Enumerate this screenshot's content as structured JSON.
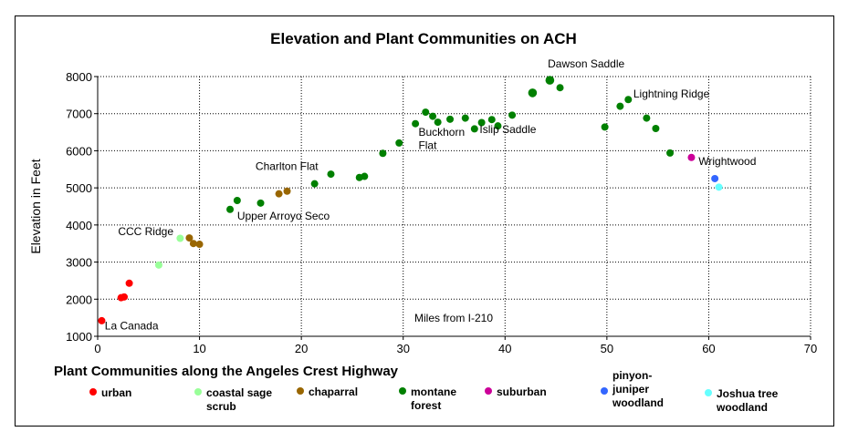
{
  "chart_data": {
    "type": "scatter",
    "title": "Elevation and Plant Communities on ACH",
    "xlabel": "Miles from I-210",
    "ylabel": "Elevation in Feet",
    "xlim": [
      0,
      70
    ],
    "ylim": [
      1000,
      8000
    ],
    "xticks": [
      "0",
      "10",
      "20",
      "30",
      "40",
      "50",
      "60",
      "70"
    ],
    "yticks": [
      "1000",
      "2000",
      "3000",
      "4000",
      "5000",
      "6000",
      "7000",
      "8000"
    ],
    "grid": true,
    "legend_title": "Plant Communities along the Angeles Crest Highway",
    "series": [
      {
        "name": "urban",
        "color": "#ff0000",
        "points": [
          [
            0.4,
            1420
          ],
          [
            2.3,
            2040
          ],
          [
            2.6,
            2060
          ],
          [
            3.1,
            2430
          ]
        ]
      },
      {
        "name": "coastal sage scrub",
        "color": "#99ff99",
        "points": [
          [
            6.0,
            2920
          ],
          [
            8.1,
            3640
          ]
        ]
      },
      {
        "name": "chaparral",
        "color": "#996600",
        "points": [
          [
            9.0,
            3650
          ],
          [
            9.4,
            3500
          ],
          [
            10.0,
            3480
          ],
          [
            17.8,
            4840
          ],
          [
            18.6,
            4910
          ]
        ]
      },
      {
        "name": "montane forest",
        "color": "#008000",
        "points": [
          [
            13.0,
            4420
          ],
          [
            13.7,
            4660
          ],
          [
            16.0,
            4590
          ],
          [
            21.3,
            5110
          ],
          [
            22.9,
            5370
          ],
          [
            25.7,
            5280
          ],
          [
            26.2,
            5310
          ],
          [
            28.0,
            5930
          ],
          [
            29.6,
            6210
          ],
          [
            31.2,
            6730
          ],
          [
            32.2,
            7040
          ],
          [
            32.9,
            6930
          ],
          [
            33.4,
            6770
          ],
          [
            34.6,
            6850
          ],
          [
            36.1,
            6880
          ],
          [
            37.0,
            6590
          ],
          [
            37.7,
            6760
          ],
          [
            38.7,
            6840
          ],
          [
            39.3,
            6670
          ],
          [
            40.7,
            6960
          ],
          [
            42.7,
            7560
          ],
          [
            44.4,
            7900
          ],
          [
            45.4,
            7700
          ],
          [
            49.8,
            6640
          ],
          [
            51.3,
            7200
          ],
          [
            52.1,
            7380
          ],
          [
            53.9,
            6880
          ],
          [
            54.8,
            6600
          ],
          [
            56.2,
            5940
          ]
        ]
      },
      {
        "name": "suburban",
        "color": "#cc0099",
        "points": [
          [
            58.3,
            5820
          ]
        ]
      },
      {
        "name": "pinyon-juniper woodland",
        "color": "#3366ff",
        "points": [
          [
            60.6,
            5250
          ]
        ]
      },
      {
        "name": "Joshua tree woodland",
        "color": "#66ffff",
        "points": [
          [
            61.0,
            5020
          ]
        ]
      }
    ],
    "annotations": [
      {
        "text": "Dawson Saddle",
        "x": 44.2,
        "y": 8250
      },
      {
        "text": "Lightning Ridge",
        "x": 52.6,
        "y": 7430
      },
      {
        "text": "Buckhorn",
        "x": 31.5,
        "y": 6400
      },
      {
        "text": "Flat",
        "x": 31.5,
        "y": 6050
      },
      {
        "text": "Islip Saddle",
        "x": 37.5,
        "y": 6480
      },
      {
        "text": "Charlton Flat",
        "x": 15.5,
        "y": 5480
      },
      {
        "text": "Wrightwood",
        "x": 59.0,
        "y": 5620
      },
      {
        "text": "Upper Arroyo Seco",
        "x": 13.7,
        "y": 4150
      },
      {
        "text": "CCC Ridge",
        "x": 2.0,
        "y": 3730
      },
      {
        "text": "La Canada",
        "x": 0.7,
        "y": 1180
      }
    ]
  },
  "legend": [
    {
      "label": "urban",
      "color": "#ff0000"
    },
    {
      "label": "coastal sage\nscrub",
      "color": "#99ff99"
    },
    {
      "label": "chaparral",
      "color": "#996600"
    },
    {
      "label": "montane\nforest",
      "color": "#008000"
    },
    {
      "label": "suburban",
      "color": "#cc0099"
    },
    {
      "label": "pinyon-\njuniper\nwoodland",
      "color": "#3366ff"
    },
    {
      "label": "Joshua tree\nwoodland",
      "color": "#66ffff"
    }
  ]
}
